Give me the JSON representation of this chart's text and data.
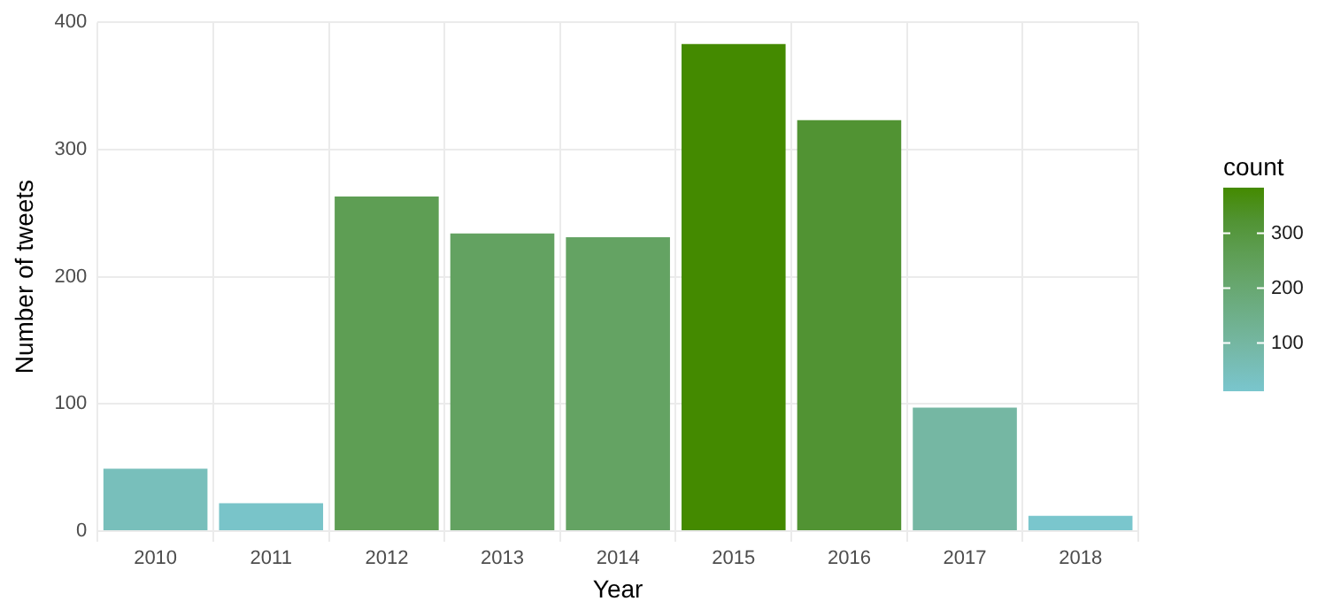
{
  "chart_data": {
    "type": "bar",
    "xlabel": "Year",
    "ylabel": "Number of tweets",
    "categories": [
      "2010",
      "2011",
      "2012",
      "2013",
      "2014",
      "2015",
      "2016",
      "2017",
      "2018"
    ],
    "values": [
      49,
      22,
      263,
      234,
      231,
      383,
      323,
      97,
      12
    ],
    "colors": [
      "#78bfbb",
      "#79c4c9",
      "#5e9e54",
      "#63a261",
      "#64a363",
      "#448a00",
      "#519333",
      "#75b7a3",
      "#7ac6cd"
    ],
    "ylim": [
      0,
      400
    ],
    "yticks": [
      0,
      100,
      200,
      300,
      400
    ],
    "clabel": "count",
    "clim": [
      12,
      383
    ],
    "cticks": [
      100,
      200,
      300
    ],
    "grid": true,
    "legend": false
  }
}
